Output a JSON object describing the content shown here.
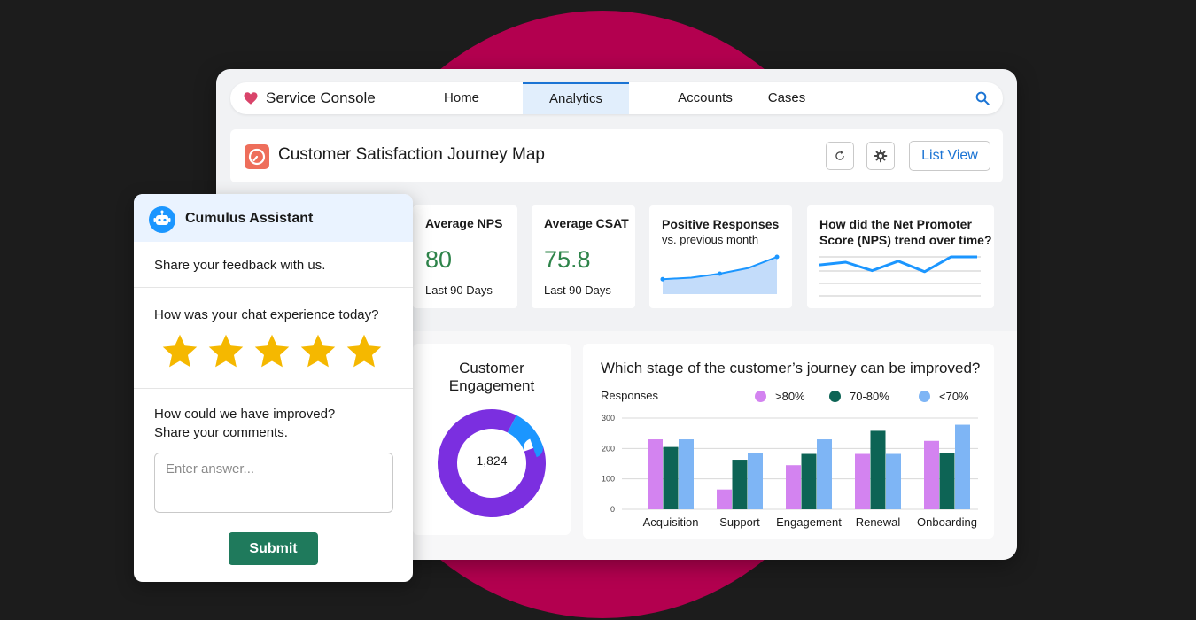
{
  "colors": {
    "page_background": "#1c1c1c",
    "circle_accent": "#b3004f",
    "brand_blue": "#1b74d4",
    "kpi_green": "#2e844a",
    "submit_green": "#1f7a5c",
    "star_yellow": "#f5b800"
  },
  "nav": {
    "brand_icon": "heart-icon",
    "app_name": "Service Console",
    "tabs": [
      {
        "label": "Home",
        "active": false
      },
      {
        "label": "Analytics",
        "active": true
      },
      {
        "label": "Accounts",
        "active": false
      },
      {
        "label": "Cases",
        "active": false
      }
    ],
    "search_icon": "search-icon"
  },
  "header": {
    "icon": "journey-map-icon",
    "title": "Customer Satisfaction Journey Map",
    "refresh_icon": "refresh-icon",
    "settings_icon": "gear-icon",
    "list_view_label": "List View"
  },
  "kpis": [
    {
      "title": "Average NPS",
      "value": "80",
      "subtitle": "Last 90 Days"
    },
    {
      "title": "Average CSAT",
      "value": "75.8",
      "subtitle": "Last 90 Days"
    }
  ],
  "positive_responses": {
    "title": "Positive Responses",
    "subtitle": "vs. previous month",
    "sparkline": [
      0.1,
      0.16,
      0.32,
      0.55,
      1.0
    ]
  },
  "nps_trend": {
    "title_line1": "How did the Net Promoter",
    "title_line2": "Score (NPS) trend over time?",
    "sparkline": [
      0.62,
      0.75,
      0.35,
      0.8,
      0.3,
      1.0,
      1.0
    ]
  },
  "engagement": {
    "title_line1": "Customer",
    "title_line2": "Engagement",
    "center_value": "1,824",
    "segments": [
      {
        "share": 0.88,
        "color": "#7b2fe0"
      },
      {
        "share": 0.12,
        "color": "#1b96ff"
      }
    ]
  },
  "assistant": {
    "icon": "bot-icon",
    "title": "Cumulus Assistant",
    "intro": "Share your feedback with us.",
    "question1": "How was your chat experience today?",
    "rating": 5,
    "rating_max": 5,
    "question2_line1": "How could we have improved?",
    "question2_line2": "Share your comments.",
    "answer_value": "",
    "answer_placeholder": "Enter answer...",
    "submit_label": "Submit"
  },
  "chart_data": {
    "type": "bar",
    "title": "Which stage of the customer’s journey can be improved?",
    "xlabel": "",
    "ylabel": "Responses",
    "ylim": [
      0,
      300
    ],
    "yticks": [
      0,
      100,
      200,
      300
    ],
    "grid": true,
    "legend_position": "top-right",
    "categories": [
      "Acquisition",
      "Support",
      "Engagement",
      "Renewal",
      "Onboarding"
    ],
    "series": [
      {
        "name": ">80%",
        "color": "#d383f0",
        "values": [
          230,
          65,
          145,
          182,
          225
        ]
      },
      {
        "name": "70-80%",
        "color": "#0d6455",
        "values": [
          205,
          163,
          182,
          258,
          185
        ]
      },
      {
        "name": "<70%",
        "color": "#7eb5f5",
        "values": [
          230,
          185,
          230,
          182,
          278
        ]
      }
    ]
  }
}
